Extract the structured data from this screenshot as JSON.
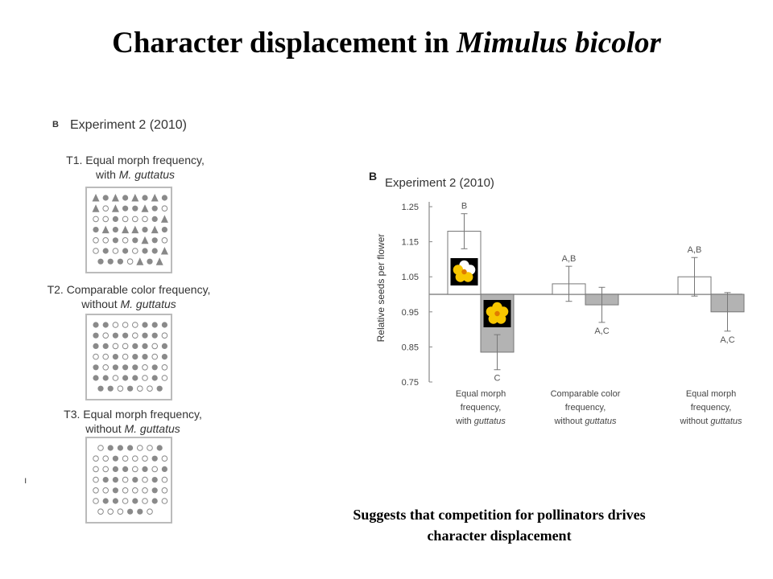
{
  "slide": {
    "title_main": "Character displacement in ",
    "title_italic": "Mimulus bicolor",
    "caption_line1": "Suggests that competition for pollinators drives",
    "caption_line2": "character displacement",
    "stray_mark": "ı"
  },
  "left_panel": {
    "letter": "B",
    "title": "Experiment 2 (2010)",
    "treatments": [
      {
        "line1": "T1. Equal morph frequency,",
        "line2_plain": "with ",
        "line2_italic": "M. guttatus"
      },
      {
        "line1": "T2. Comparable color frequency,",
        "line2_plain": "without ",
        "line2_italic": "M. guttatus"
      },
      {
        "line1": "T3. Equal morph frequency,",
        "line2_plain": "without ",
        "line2_italic": "M. guttatus"
      }
    ],
    "grids": [
      [
        "TCTCTCTC",
        "TOTCCTCO",
        "OOCOOOCT",
        "CTCTTCTC",
        "OOCOCTCO",
        "OCOCOCCT",
        "CCCOTCT"
      ],
      [
        "CCOOOCCC",
        "COCCOCCO",
        "CCOOCCOC",
        "OOCOCCOC",
        "COCCCOCO",
        "CCOCCOCO",
        "CCOCOOC"
      ],
      [
        "OCCCOOC",
        "OOCOOOCO",
        "OOCCOCOC",
        "OCCOCOCO",
        "OOCOOOCO",
        "OCCOCOCO",
        "OOOCCO"
      ]
    ]
  },
  "chart_data": {
    "type": "bar",
    "panel_letter": "B",
    "title": "Experiment 2 (2010)",
    "ylabel": "Relative seeds per flower",
    "ylim": [
      0.75,
      1.25
    ],
    "yticks": [
      "1.25",
      "1.15",
      "1.05",
      "0.95",
      "0.85",
      "0.75"
    ],
    "baseline": 1.0,
    "groups": [
      {
        "label_lines": [
          "Equal morph",
          "frequency,",
          "with "
        ],
        "label_italic": "guttatus",
        "bars": [
          {
            "value": 1.18,
            "err": 0.05,
            "letters": "B",
            "color": "#ffffff"
          },
          {
            "value": 0.835,
            "err": 0.05,
            "letters": "C",
            "color": "#b3b3b3"
          }
        ]
      },
      {
        "label_lines": [
          "Comparable color",
          "frequency,",
          "without "
        ],
        "label_italic": "guttatus",
        "bars": [
          {
            "value": 1.03,
            "err": 0.05,
            "letters": "A,B",
            "color": "#ffffff"
          },
          {
            "value": 0.97,
            "err": 0.05,
            "letters": "A,C",
            "color": "#b3b3b3"
          }
        ]
      },
      {
        "label_lines": [
          "Equal morph",
          "frequency,",
          "without "
        ],
        "label_italic": "guttatus",
        "bars": [
          {
            "value": 1.05,
            "err": 0.055,
            "letters": "A,B",
            "color": "#ffffff"
          },
          {
            "value": 0.95,
            "err": 0.055,
            "letters": "A,C",
            "color": "#b3b3b3"
          }
        ]
      }
    ],
    "legend_icons": [
      {
        "morph": "white-and-yellow flower",
        "color": "#ffffff"
      },
      {
        "morph": "yellow flower",
        "color": "#f7c600"
      }
    ]
  }
}
